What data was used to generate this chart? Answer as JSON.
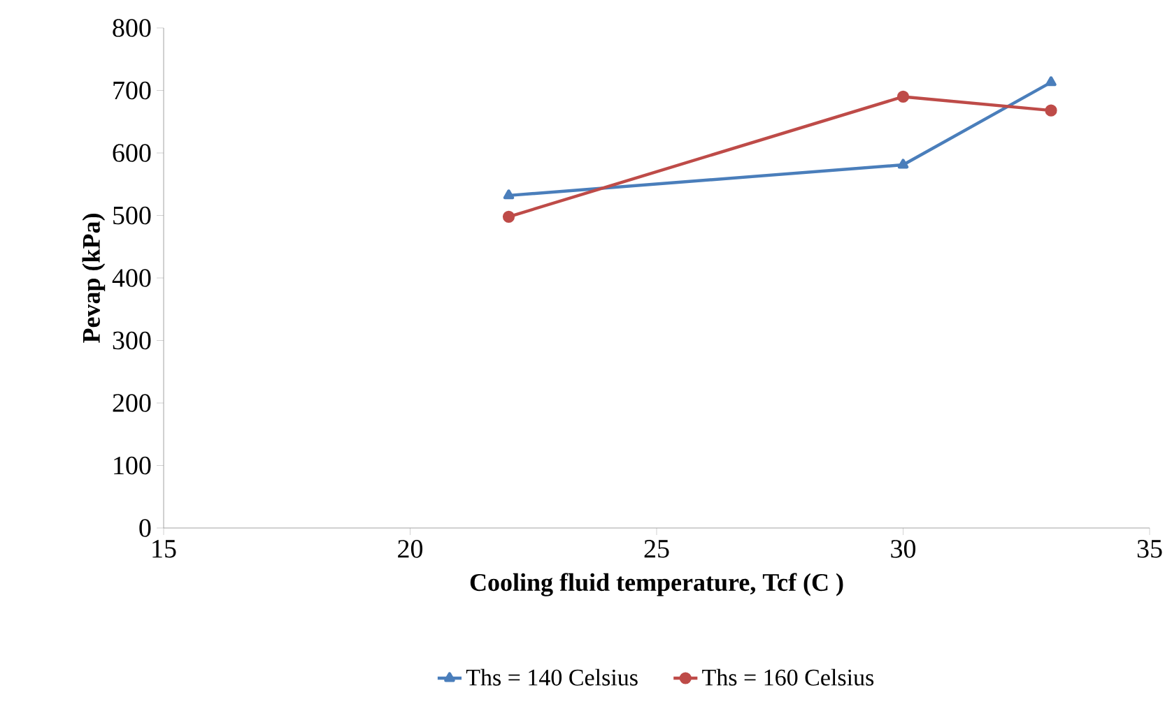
{
  "chart_data": {
    "type": "line",
    "xlabel": "Cooling fluid temperature, Tcf (C )",
    "ylabel": "Pevap (kPa)",
    "xlim": [
      15,
      35
    ],
    "xticks": [
      15,
      20,
      25,
      30,
      35
    ],
    "ylim": [
      0,
      800
    ],
    "yticks": [
      0,
      100,
      200,
      300,
      400,
      500,
      600,
      700,
      800
    ],
    "grid": false,
    "legend": "bottom",
    "series": [
      {
        "name": "Ths = 140 Celsius",
        "color": "#4a7ebb",
        "marker": "triangle",
        "x": [
          22,
          30,
          33
        ],
        "values": [
          532,
          581,
          713
        ]
      },
      {
        "name": "Ths = 160 Celsius",
        "color": "#be4b48",
        "marker": "circle",
        "x": [
          22,
          30,
          33
        ],
        "values": [
          498,
          690,
          668
        ]
      }
    ]
  }
}
